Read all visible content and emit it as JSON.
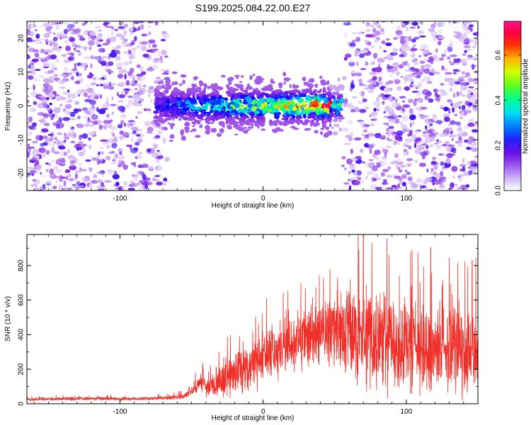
{
  "title": "S199.2025.084.22.00.E27",
  "colors": {
    "snr_line": "#f03028",
    "axis": "#000000",
    "background": "#ffffff"
  },
  "chart_data": [
    {
      "type": "heatmap",
      "name": "spectrogram",
      "xlabel": "Height of straight line (km)",
      "ylabel": "Frequency (Hz)",
      "xlim": [
        -165,
        150
      ],
      "ylim": [
        -25,
        25
      ],
      "xticks": [
        -100,
        0,
        100
      ],
      "yticks": [
        -20,
        -10,
        0,
        10,
        20
      ],
      "colorbar": {
        "label": "Normalized spectral amplitude",
        "range": [
          0,
          0.75
        ],
        "ticks": [
          0,
          0.2,
          0.4,
          0.6
        ],
        "tick_labels": [
          "0.0",
          "0.2",
          "0.4",
          "0.6"
        ],
        "colormap": [
          "#ffffff",
          "#c9a8f0",
          "#8a2be2",
          "#0000ff",
          "#00c8ff",
          "#00ff90",
          "#7fff00",
          "#ffff00",
          "#ff8000",
          "#ff0000",
          "#ff1090"
        ]
      },
      "signal_band": {
        "x_range": [
          -75,
          55
        ],
        "frequency_center": 0,
        "frequency_halfwidth": 6,
        "peak_amplitude": 0.72,
        "peak_height_km": 45,
        "peak_frequency_hz": 0
      },
      "noise_regions": [
        {
          "x_range": [
            -165,
            -65
          ],
          "typical_amplitude": 0.08
        },
        {
          "x_range": [
            55,
            150
          ],
          "typical_amplitude": 0.08
        }
      ]
    },
    {
      "type": "line",
      "name": "snr",
      "xlabel": "Height of straight line (km)",
      "ylabel": "SNR (10 * v/v)",
      "xlim": [
        -165,
        150
      ],
      "ylim": [
        0,
        980
      ],
      "xticks": [
        -100,
        0,
        100
      ],
      "yticks": [
        0,
        200,
        400,
        600,
        800
      ],
      "series": [
        {
          "name": "SNR",
          "x": [
            -165,
            -140,
            -120,
            -100,
            -80,
            -65,
            -55,
            -50,
            -45,
            -42,
            -40,
            -35,
            -30,
            -25,
            -20,
            -15,
            -10,
            -5,
            0,
            5,
            10,
            15,
            20,
            25,
            30,
            35,
            40,
            45,
            50,
            55,
            60,
            65,
            70,
            75,
            80,
            85,
            90,
            95,
            100,
            105,
            110,
            115,
            120,
            125,
            130,
            135,
            140,
            145,
            150
          ],
          "values": [
            25,
            28,
            30,
            28,
            30,
            35,
            45,
            75,
            120,
            130,
            90,
            110,
            130,
            160,
            180,
            200,
            220,
            240,
            260,
            280,
            300,
            320,
            340,
            360,
            380,
            395,
            400,
            410,
            420,
            430,
            420,
            410,
            390,
            380,
            370,
            360,
            350,
            345,
            340,
            335,
            330,
            330,
            325,
            320,
            320,
            315,
            310,
            320,
            330
          ],
          "spread": [
            12,
            12,
            12,
            12,
            12,
            15,
            20,
            40,
            60,
            70,
            60,
            90,
            120,
            140,
            150,
            160,
            170,
            180,
            190,
            200,
            200,
            200,
            200,
            200,
            200,
            200,
            220,
            240,
            260,
            300,
            320,
            340,
            340,
            340,
            340,
            340,
            320,
            320,
            320,
            320,
            300,
            300,
            300,
            300,
            300,
            300,
            300,
            300,
            300
          ]
        }
      ],
      "peaks": [
        {
          "x": 70,
          "y": 975
        },
        {
          "x": 76,
          "y": 930
        },
        {
          "x": 88,
          "y": 860
        },
        {
          "x": 103,
          "y": 880
        },
        {
          "x": 117,
          "y": 905
        },
        {
          "x": 146,
          "y": 830
        }
      ]
    }
  ]
}
